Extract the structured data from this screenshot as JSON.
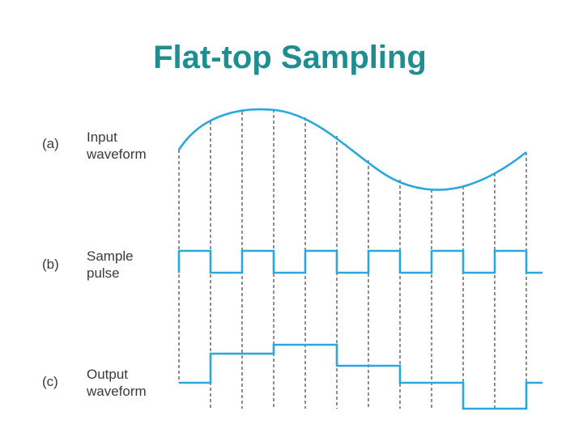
{
  "header": {
    "title": "Flat-top Sampling"
  },
  "panels": [
    {
      "tag": "(a)",
      "label": [
        "Input",
        "waveform"
      ]
    },
    {
      "tag": "(b)",
      "label": [
        "Sample",
        "pulse"
      ]
    },
    {
      "tag": "(c)",
      "label": [
        "Output",
        "waveform"
      ]
    }
  ]
}
